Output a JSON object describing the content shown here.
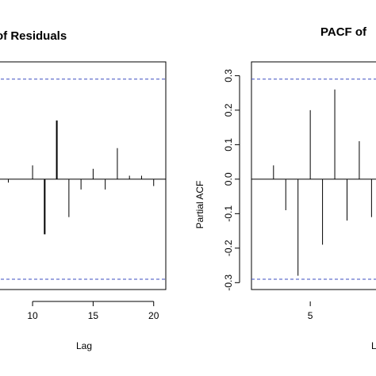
{
  "chart_data": [
    {
      "type": "bar",
      "title": "ACF of Residuals",
      "xlabel": "Lag",
      "ylabel": "",
      "xlim": [
        6,
        21
      ],
      "ylim": [
        -0.32,
        0.34
      ],
      "xticks": [
        10,
        15,
        20
      ],
      "yticks": [],
      "confidence_band": [
        -0.29,
        0.29
      ],
      "points": [
        {
          "lag": 7,
          "value": -0.01
        },
        {
          "lag": 8,
          "value": -0.01
        },
        {
          "lag": 9,
          "value": 0.0
        },
        {
          "lag": 10,
          "value": 0.04
        },
        {
          "lag": 11,
          "value": -0.16
        },
        {
          "lag": 12,
          "value": 0.17
        },
        {
          "lag": 13,
          "value": -0.11
        },
        {
          "lag": 14,
          "value": -0.03
        },
        {
          "lag": 15,
          "value": 0.03
        },
        {
          "lag": 16,
          "value": -0.03
        },
        {
          "lag": 17,
          "value": 0.09
        },
        {
          "lag": 18,
          "value": 0.01
        },
        {
          "lag": 19,
          "value": 0.01
        },
        {
          "lag": 20,
          "value": -0.02
        }
      ]
    },
    {
      "type": "bar",
      "title": "PACF of",
      "xlabel": "L",
      "ylabel": "Partial ACF",
      "xlim": [
        0.2,
        11.4
      ],
      "ylim": [
        -0.32,
        0.34
      ],
      "xticks": [
        5
      ],
      "ytick_labels": [
        "-0.3",
        "-0.2",
        "-0.1",
        "0.0",
        "0.1",
        "0.2",
        "0.3"
      ],
      "yticks": [
        -0.3,
        -0.2,
        -0.1,
        0.0,
        0.1,
        0.2,
        0.3
      ],
      "confidence_band": [
        -0.29,
        0.29
      ],
      "points": [
        {
          "lag": 1,
          "value": 0.0
        },
        {
          "lag": 2,
          "value": 0.04
        },
        {
          "lag": 3,
          "value": -0.09
        },
        {
          "lag": 4,
          "value": -0.28
        },
        {
          "lag": 5,
          "value": 0.2
        },
        {
          "lag": 6,
          "value": -0.19
        },
        {
          "lag": 7,
          "value": 0.26
        },
        {
          "lag": 8,
          "value": -0.12
        },
        {
          "lag": 9,
          "value": 0.11
        },
        {
          "lag": 10,
          "value": -0.11
        }
      ]
    }
  ]
}
